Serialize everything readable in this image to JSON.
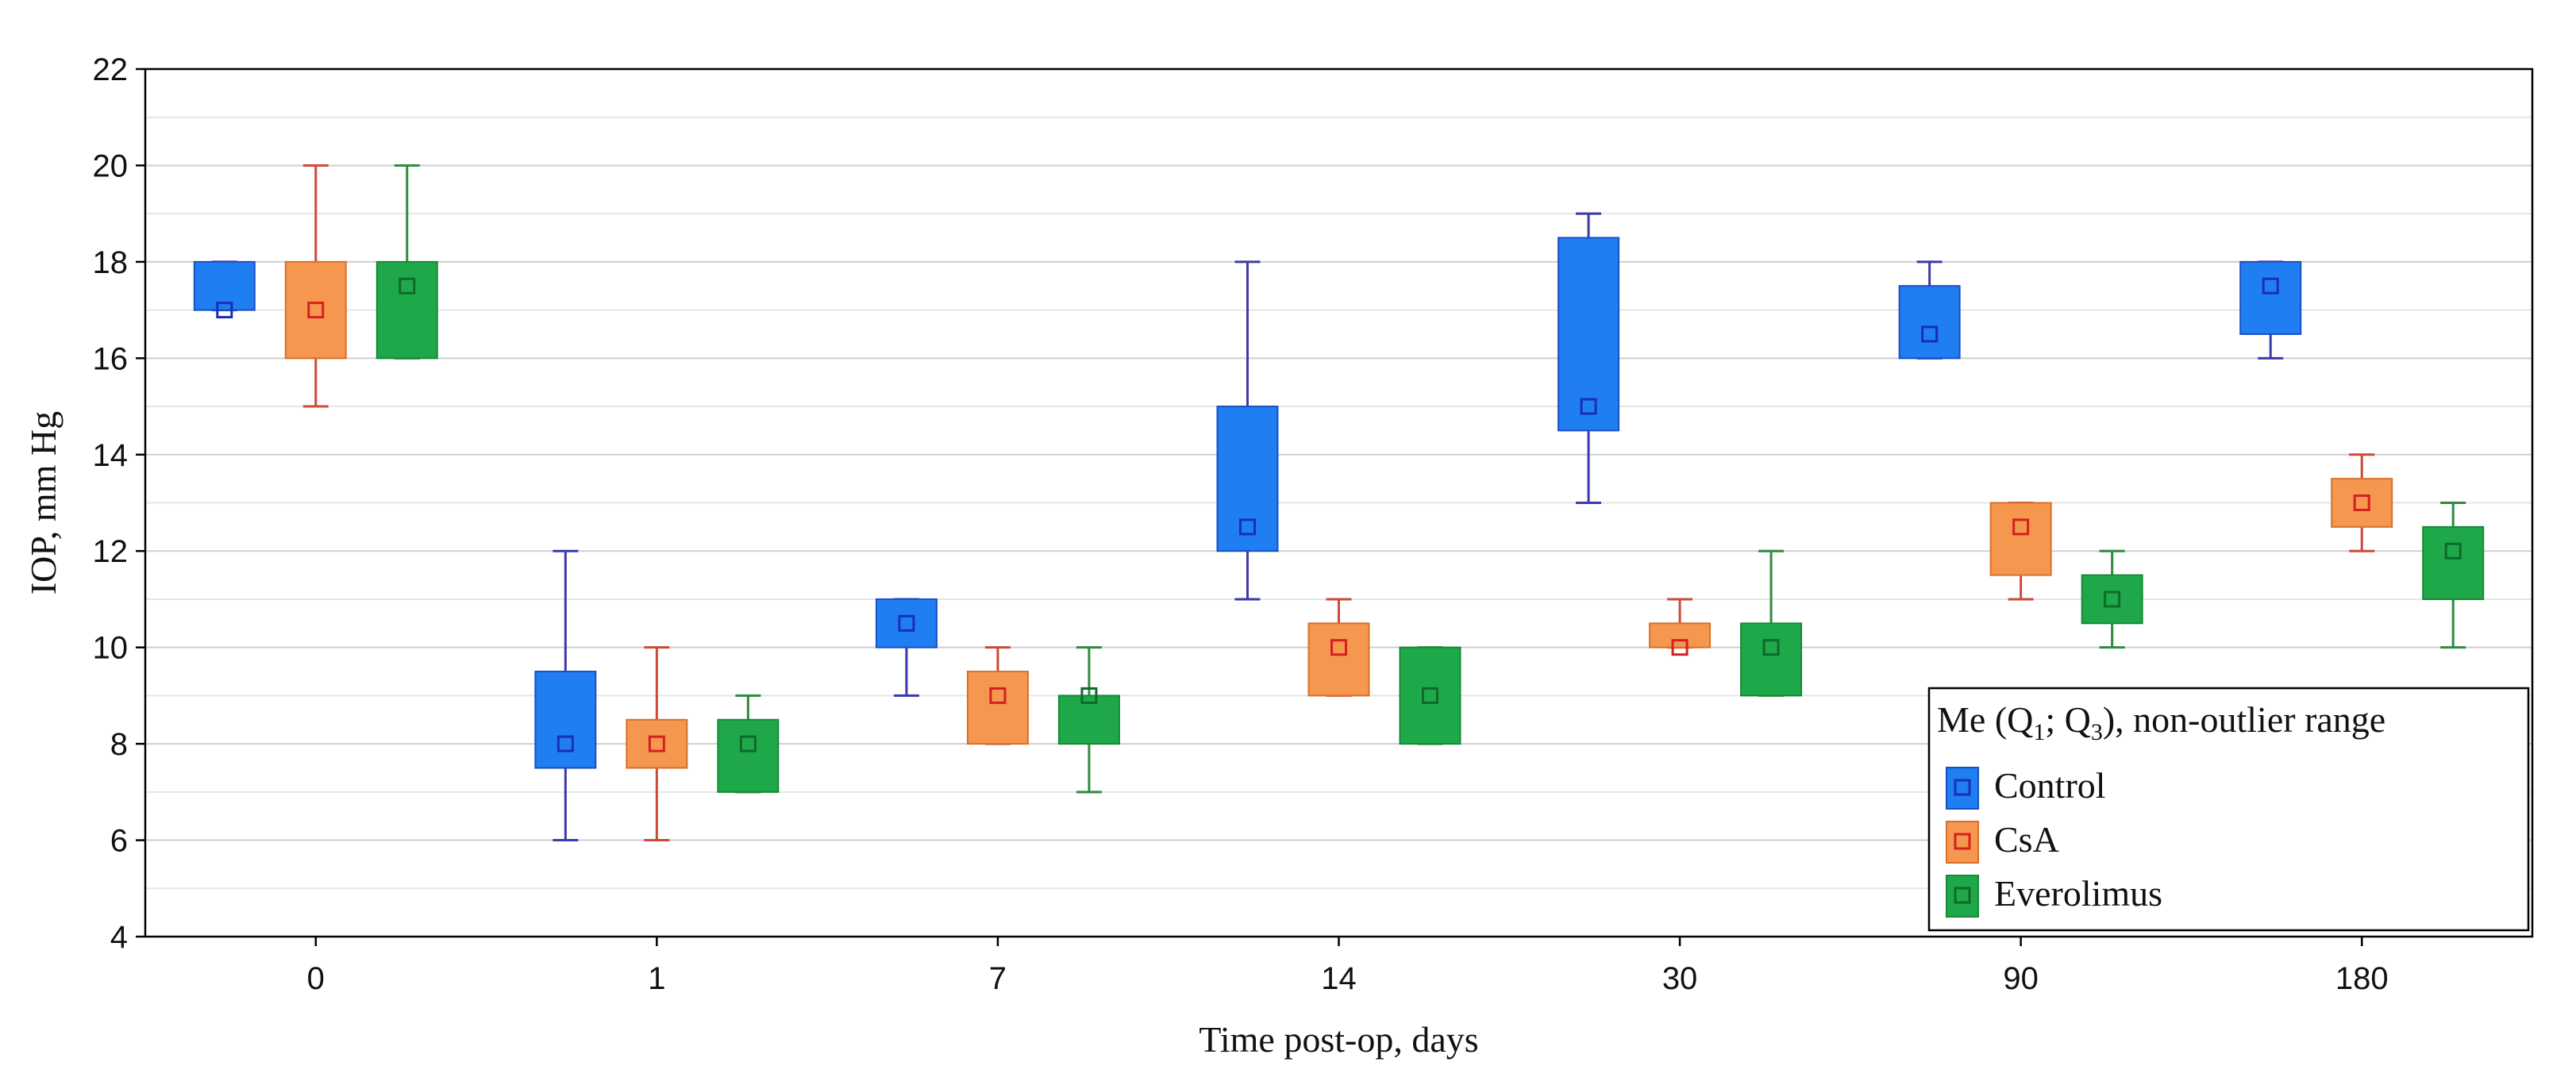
{
  "chart_data": {
    "type": "boxplot",
    "ylabel": "IOP, mm Hg",
    "xlabel": "Time post-op, days",
    "ylim": [
      4,
      22
    ],
    "yticks": [
      4,
      6,
      8,
      10,
      12,
      14,
      16,
      18,
      20,
      22
    ],
    "categories": [
      "0",
      "1",
      "7",
      "14",
      "30",
      "90",
      "180"
    ],
    "grid": true,
    "legend": {
      "position": "bottom-right",
      "title_main": "Me (Q",
      "title_sub1": "1",
      "title_mid": "; Q",
      "title_sub3": "3",
      "title_end": "), non-outlier range"
    },
    "series": [
      {
        "name": "Control",
        "color": "#1f7ef2",
        "edge": "#1a4fc4",
        "marker": "#1a2fb5",
        "whisker": "#3a3aa8",
        "data": [
          {
            "median": 17.0,
            "q1": 17.0,
            "q3": 18.0,
            "min": 17.0,
            "max": 18.0
          },
          {
            "median": 8.0,
            "q1": 7.5,
            "q3": 9.5,
            "min": 6.0,
            "max": 12.0
          },
          {
            "median": 10.5,
            "q1": 10.0,
            "q3": 11.0,
            "min": 9.0,
            "max": 11.0
          },
          {
            "median": 12.5,
            "q1": 12.0,
            "q3": 15.0,
            "min": 11.0,
            "max": 18.0
          },
          {
            "median": 15.0,
            "q1": 14.5,
            "q3": 18.5,
            "min": 13.0,
            "max": 19.0
          },
          {
            "median": 16.5,
            "q1": 16.0,
            "q3": 17.5,
            "min": 16.0,
            "max": 18.0
          },
          {
            "median": 17.5,
            "q1": 16.5,
            "q3": 18.0,
            "min": 16.0,
            "max": 18.0
          }
        ]
      },
      {
        "name": "CsA",
        "color": "#f5974f",
        "edge": "#d9702a",
        "marker": "#d62020",
        "whisker": "#cc4a3a",
        "data": [
          {
            "median": 17.0,
            "q1": 16.0,
            "q3": 18.0,
            "min": 15.0,
            "max": 20.0
          },
          {
            "median": 8.0,
            "q1": 7.5,
            "q3": 8.5,
            "min": 6.0,
            "max": 10.0
          },
          {
            "median": 9.0,
            "q1": 8.0,
            "q3": 9.5,
            "min": 8.0,
            "max": 10.0
          },
          {
            "median": 10.0,
            "q1": 9.0,
            "q3": 10.5,
            "min": 9.0,
            "max": 11.0
          },
          {
            "median": 10.0,
            "q1": 10.0,
            "q3": 10.5,
            "min": 10.0,
            "max": 11.0
          },
          {
            "median": 12.5,
            "q1": 11.5,
            "q3": 13.0,
            "min": 11.0,
            "max": 13.0
          },
          {
            "median": 13.0,
            "q1": 12.5,
            "q3": 13.5,
            "min": 12.0,
            "max": 14.0
          }
        ]
      },
      {
        "name": "Everolimus",
        "color": "#1fa849",
        "edge": "#158a36",
        "marker": "#0e6a2a",
        "whisker": "#2e8a3e",
        "data": [
          {
            "median": 17.5,
            "q1": 16.0,
            "q3": 18.0,
            "min": 16.0,
            "max": 20.0
          },
          {
            "median": 8.0,
            "q1": 7.0,
            "q3": 8.5,
            "min": 7.0,
            "max": 9.0
          },
          {
            "median": 9.0,
            "q1": 8.0,
            "q3": 9.0,
            "min": 7.0,
            "max": 10.0
          },
          {
            "median": 9.0,
            "q1": 8.0,
            "q3": 10.0,
            "min": 8.0,
            "max": 10.0
          },
          {
            "median": 10.0,
            "q1": 9.0,
            "q3": 10.5,
            "min": 9.0,
            "max": 12.0
          },
          {
            "median": 11.0,
            "q1": 10.5,
            "q3": 11.5,
            "min": 10.0,
            "max": 12.0
          },
          {
            "median": 12.0,
            "q1": 11.0,
            "q3": 12.5,
            "min": 10.0,
            "max": 13.0
          }
        ]
      }
    ]
  }
}
